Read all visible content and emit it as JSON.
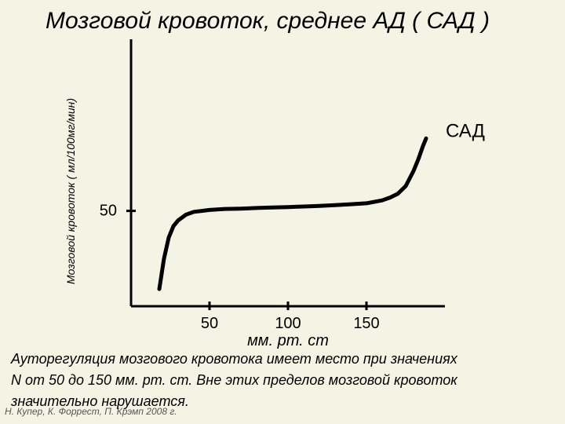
{
  "slide": {
    "title": "Мозговой  кровоток, среднее  АД ( САД )",
    "note_lines": [
      "Ауторегуляция мозгового кровотока имеет место при значениях",
      "N от 50 до 150 мм. рт. ст.  Вне этих пределов мозговой кровоток",
      "значительно нарушается."
    ],
    "credit": "Н. Купер, К. Форрест, П. Крэмп 2008 г."
  },
  "chart_data": {
    "type": "line",
    "title": "Мозговой  кровоток, среднее  АД ( САД )",
    "xlabel": "мм. рт. ст",
    "ylabel": "Мозговой кровоток ( мл/100мг/мин)",
    "x_ticks": [
      50,
      100,
      150
    ],
    "y_ticks": [
      50
    ],
    "xlim": [
      0,
      200
    ],
    "ylim": [
      0,
      140
    ],
    "grid": false,
    "series": [
      {
        "name": "САД",
        "color": "#000000",
        "x": [
          18,
          21,
          24,
          27,
          30,
          35,
          40,
          50,
          60,
          70,
          80,
          90,
          100,
          110,
          120,
          130,
          140,
          150,
          160,
          165,
          170,
          175,
          180,
          183,
          186,
          188
        ],
        "y": [
          9,
          25,
          36,
          42,
          45,
          48,
          49.5,
          50.5,
          51,
          51.2,
          51.5,
          51.8,
          52,
          52.3,
          52.6,
          53,
          53.5,
          54,
          55.5,
          57,
          59,
          63,
          71,
          77,
          84,
          88
        ]
      }
    ]
  }
}
